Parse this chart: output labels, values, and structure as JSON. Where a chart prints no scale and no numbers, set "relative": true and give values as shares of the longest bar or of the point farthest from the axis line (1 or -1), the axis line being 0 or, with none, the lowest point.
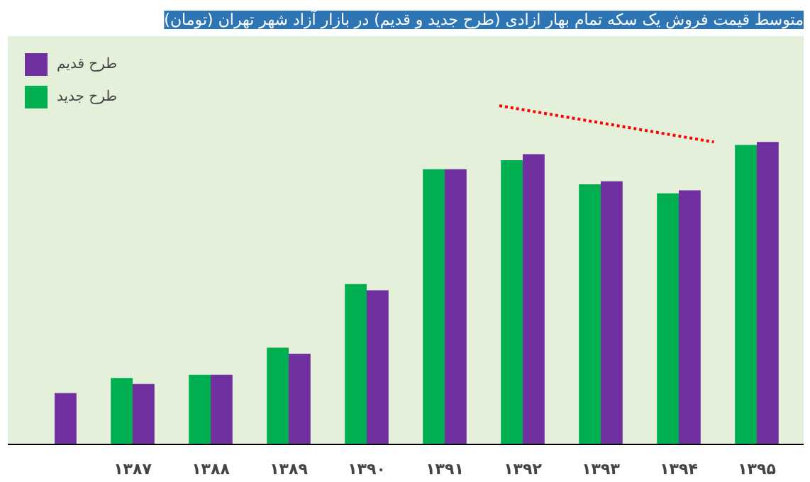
{
  "chart_data": {
    "type": "bar",
    "title": "متوسط قیمت فروش یک سکه تمام بهار ازادی (طرح جدید و قدیم) در بازار آزاد شهر تهران (تومان)",
    "categories": [
      null,
      "۱۳۸۷",
      "۱۳۸۸",
      "۱۳۸۹",
      "۱۳۹۰",
      "۱۳۹۱",
      "۱۳۹۲",
      "۱۳۹۳",
      "۱۳۹۴",
      "۱۳۹۵"
    ],
    "relative": true,
    "legend": "top left",
    "series": [
      {
        "name": "طرح جدید",
        "color": "#00b050",
        "values": [
          null,
          0.22,
          0.23,
          0.32,
          0.53,
          0.91,
          0.94,
          0.86,
          0.83,
          0.99
        ]
      },
      {
        "name": "طرح قدیم",
        "color": "#7030a0",
        "values": [
          0.17,
          0.2,
          0.23,
          0.3,
          0.51,
          0.91,
          0.96,
          0.87,
          0.84,
          1
        ]
      }
    ]
  }
}
